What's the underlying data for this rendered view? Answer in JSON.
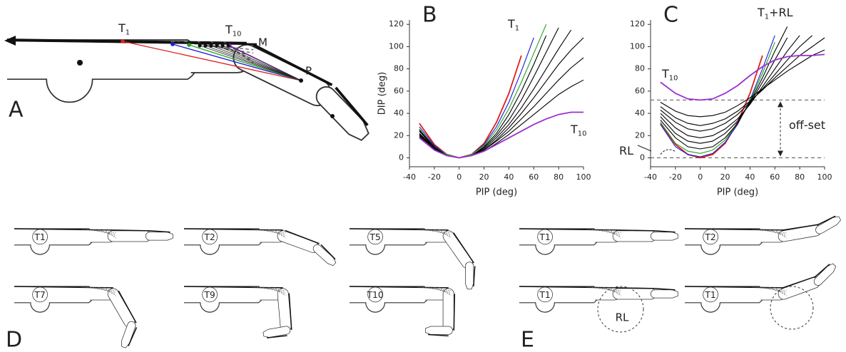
{
  "diagram_a": {
    "panel_label": "A",
    "t1": {
      "text": "T",
      "sub": "1"
    },
    "t10": {
      "text": "T",
      "sub": "10"
    },
    "m": "M",
    "p": "P"
  },
  "diagram_d": {
    "panel_label": "D",
    "fingers": [
      "T1",
      "T2",
      "T5",
      "T7",
      "T9",
      "T10"
    ]
  },
  "diagram_e": {
    "panel_label": "E",
    "fingers": [
      "T1",
      "T2",
      "T1",
      "T1"
    ],
    "circle_label": "RL"
  },
  "chart_data": [
    {
      "type": "line",
      "panel_label": "B",
      "xlabel": "PIP (deg)",
      "ylabel": "DIP (deg)",
      "x": [
        -32,
        -20,
        -10,
        0,
        10,
        20,
        30,
        40,
        50,
        60,
        70,
        80,
        90,
        100
      ],
      "xlim": [
        -40,
        100
      ],
      "ylim": [
        -8,
        124
      ],
      "xticks": [
        -40,
        -20,
        0,
        20,
        40,
        60,
        80,
        100
      ],
      "yticks": [
        0,
        20,
        40,
        60,
        80,
        100,
        120
      ],
      "series": [
        {
          "color": "#e0201b",
          "values": [
            31,
            12,
            3,
            0,
            3,
            13,
            32,
            58,
            92,
            null,
            null,
            null,
            null,
            null
          ]
        },
        {
          "color": "#1a1adc",
          "values": [
            28,
            11,
            3,
            0,
            3,
            12,
            28,
            50,
            78,
            108,
            null,
            null,
            null,
            null
          ]
        },
        {
          "color": "#22a022",
          "values": [
            26,
            10,
            3,
            0,
            3,
            11,
            25,
            44,
            68,
            94,
            120,
            null,
            null,
            null
          ]
        },
        {
          "color": "#000000",
          "values": [
            25,
            10,
            2,
            0,
            2,
            10,
            22,
            39,
            60,
            84,
            110,
            null,
            null,
            null
          ]
        },
        {
          "color": "#000000",
          "values": [
            24,
            9,
            2,
            0,
            2,
            9,
            20,
            34,
            52,
            73,
            95,
            117,
            null,
            null
          ]
        },
        {
          "color": "#000000",
          "values": [
            22,
            9,
            2,
            0,
            2,
            8,
            18,
            30,
            45,
            62,
            80,
            98,
            115,
            null
          ]
        },
        {
          "color": "#000000",
          "values": [
            21,
            8,
            2,
            0,
            2,
            7,
            16,
            27,
            40,
            54,
            69,
            84,
            97,
            108
          ]
        },
        {
          "color": "#000000",
          "values": [
            20,
            8,
            2,
            0,
            2,
            7,
            15,
            24,
            35,
            46,
            58,
            70,
            81,
            90
          ]
        },
        {
          "color": "#000000",
          "values": [
            19,
            7,
            2,
            0,
            2,
            6,
            13,
            21,
            30,
            39,
            48,
            57,
            64,
            70
          ]
        },
        {
          "color": "#9b30d0",
          "values": [
            18,
            7,
            2,
            0,
            2,
            6,
            12,
            18,
            24,
            30,
            35,
            39,
            41,
            41
          ]
        }
      ],
      "annotations": [
        {
          "text": "T",
          "sub": "1",
          "color": "#e0201b"
        },
        {
          "text": "T",
          "sub": "10",
          "color": "#9b30d0"
        }
      ]
    },
    {
      "type": "line",
      "panel_label": "C",
      "xlabel": "PIP (deg)",
      "x": [
        -32,
        -20,
        -10,
        0,
        10,
        20,
        30,
        40,
        50,
        60,
        70,
        80,
        90,
        100
      ],
      "xlim": [
        -40,
        100
      ],
      "ylim": [
        -8,
        124
      ],
      "xticks": [
        -40,
        -20,
        0,
        20,
        40,
        60,
        80,
        100
      ],
      "yticks": [
        0,
        20,
        40,
        60,
        80,
        100,
        120
      ],
      "hlines": [
        52,
        0
      ],
      "series": [
        {
          "color": "#e0201b",
          "values": [
            31,
            12,
            3,
            0,
            3,
            13,
            32,
            58,
            92,
            null,
            null,
            null,
            null,
            null
          ]
        },
        {
          "color": "#1a1adc",
          "values": [
            30,
            10,
            3,
            1,
            4,
            14,
            30,
            52,
            80,
            110,
            null,
            null,
            null,
            null
          ]
        },
        {
          "color": "#22a022",
          "values": [
            32,
            13,
            6,
            4,
            7,
            16,
            31,
            51,
            76,
            104,
            null,
            null,
            null,
            null
          ]
        },
        {
          "color": "#000000",
          "values": [
            34,
            18,
            10,
            8,
            10,
            18,
            31,
            50,
            72,
            96,
            118,
            null,
            null,
            null
          ]
        },
        {
          "color": "#000000",
          "values": [
            37,
            22,
            15,
            13,
            15,
            22,
            33,
            49,
            68,
            88,
            108,
            null,
            null,
            null
          ]
        },
        {
          "color": "#000000",
          "values": [
            40,
            27,
            20,
            18,
            20,
            26,
            35,
            48,
            64,
            80,
            96,
            110,
            null,
            null
          ]
        },
        {
          "color": "#000000",
          "values": [
            43,
            32,
            26,
            24,
            26,
            31,
            39,
            50,
            62,
            75,
            88,
            100,
            110,
            null
          ]
        },
        {
          "color": "#000000",
          "values": [
            46,
            36,
            31,
            29,
            31,
            35,
            42,
            51,
            61,
            72,
            82,
            92,
            100,
            108
          ]
        },
        {
          "color": "#000000",
          "values": [
            50,
            42,
            38,
            37,
            38,
            41,
            47,
            54,
            62,
            70,
            78,
            85,
            92,
            97
          ]
        },
        {
          "color": "#9b30d0",
          "values": [
            68,
            58,
            53,
            52,
            53,
            58,
            65,
            74,
            82,
            88,
            91,
            92,
            92,
            93
          ]
        }
      ],
      "annotations": [
        {
          "text": "T",
          "sub": "1",
          "suffix": "+RL",
          "color": "#e0201b"
        },
        {
          "text": "T",
          "sub": "10",
          "color": "#9b30d0"
        },
        {
          "text": "RL"
        },
        {
          "text": "off-set"
        }
      ]
    }
  ]
}
